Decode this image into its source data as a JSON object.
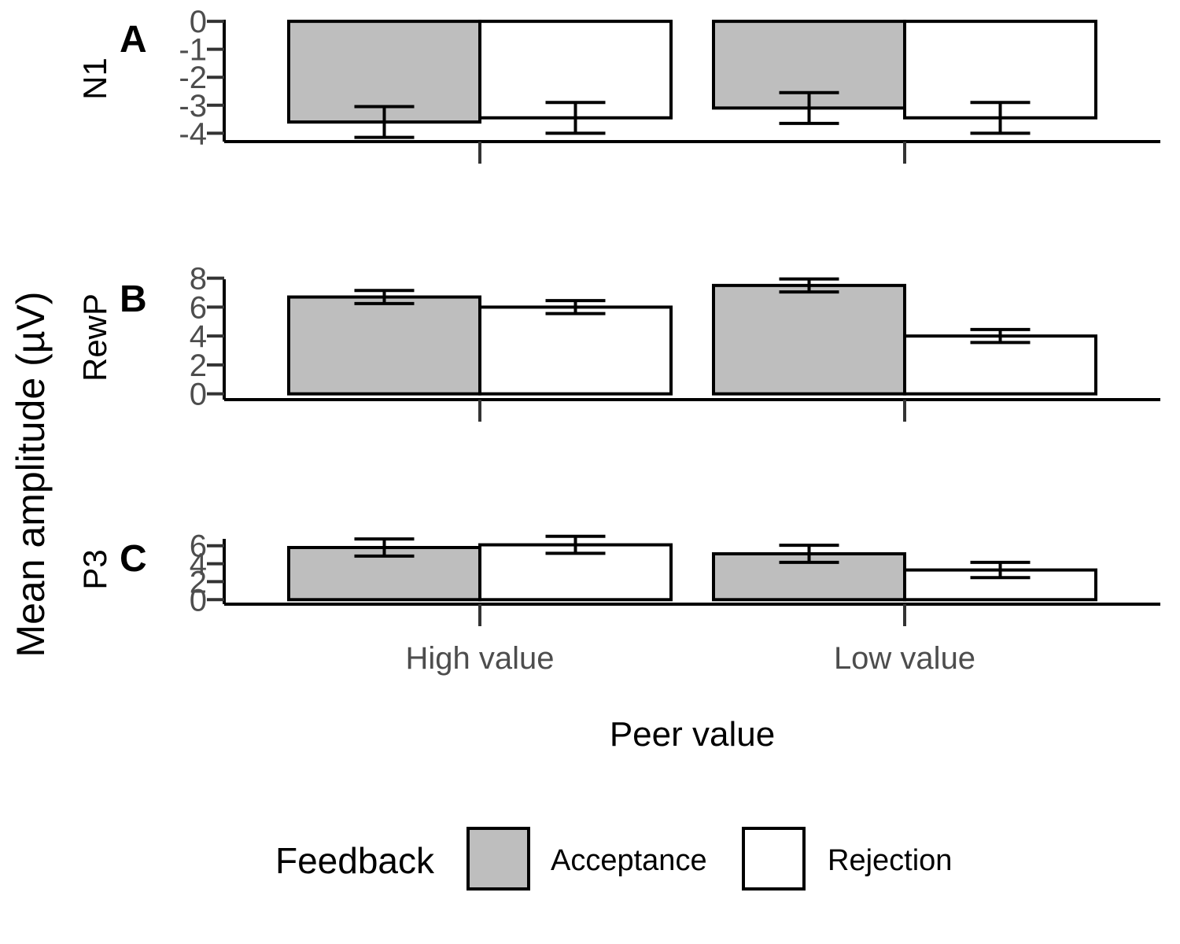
{
  "chart_data": {
    "type": "bar",
    "ylabel": "Mean amplitude (µV)",
    "xlabel": "Peer value",
    "categories": [
      "High value",
      "Low value"
    ],
    "legend": {
      "title": "Feedback",
      "position": "bottom",
      "entries": [
        {
          "name": "Acceptance",
          "color": "#bebebe"
        },
        {
          "name": "Rejection",
          "color": "#ffffff"
        }
      ]
    },
    "panels": [
      {
        "label": "A",
        "title": "N1",
        "ylim": [
          -4.3,
          0.2
        ],
        "yticks": [
          0,
          -1,
          -2,
          -3,
          -4
        ],
        "series": [
          {
            "name": "Acceptance",
            "values": [
              -3.6,
              -3.1
            ],
            "error": [
              0.55,
              0.55
            ]
          },
          {
            "name": "Rejection",
            "values": [
              -3.45,
              -3.45
            ],
            "error": [
              0.55,
              0.55
            ]
          }
        ]
      },
      {
        "label": "B",
        "title": "RewP",
        "ylim": [
          -0.4,
          8.2
        ],
        "yticks": [
          0,
          2,
          4,
          6,
          8
        ],
        "series": [
          {
            "name": "Acceptance",
            "values": [
              6.7,
              7.5
            ],
            "error": [
              0.45,
              0.45
            ]
          },
          {
            "name": "Rejection",
            "values": [
              6.0,
              4.0
            ],
            "error": [
              0.45,
              0.45
            ]
          }
        ]
      },
      {
        "label": "C",
        "title": "P3",
        "ylim": [
          -0.5,
          7.2
        ],
        "yticks": [
          0,
          2,
          4,
          6
        ],
        "series": [
          {
            "name": "Acceptance",
            "values": [
              5.8,
              5.1
            ],
            "error": [
              0.95,
              0.95
            ]
          },
          {
            "name": "Rejection",
            "values": [
              6.1,
              3.3
            ],
            "error": [
              0.95,
              0.85
            ]
          }
        ]
      }
    ],
    "grid": false
  },
  "colors": {
    "acceptance": "#bebebe",
    "rejection": "#ffffff",
    "axis": "#000000",
    "tick_text": "#4d4d4d"
  }
}
